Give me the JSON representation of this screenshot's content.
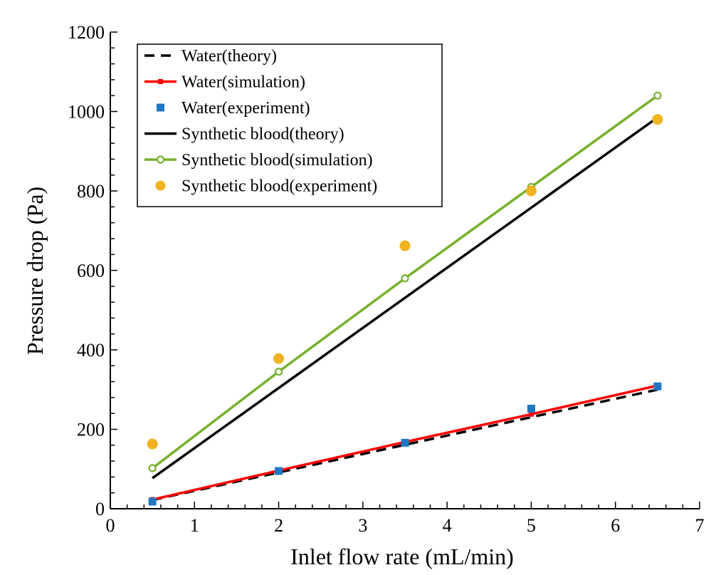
{
  "chart_data": {
    "type": "line",
    "xlabel": "Inlet flow rate (mL/min)",
    "ylabel": "Pressure drop (Pa)",
    "xlim": [
      0,
      7
    ],
    "ylim": [
      0,
      1200
    ],
    "xticks": [
      0,
      1,
      2,
      3,
      4,
      5,
      6,
      7
    ],
    "yticks": [
      0,
      200,
      400,
      600,
      800,
      1000,
      1200
    ],
    "legend_position": "top-left",
    "grid": false,
    "series": [
      {
        "name": "Water(theory)",
        "style": "dashed-line",
        "color": "#000000",
        "x": [
          0.5,
          6.5
        ],
        "y": [
          22,
          300
        ]
      },
      {
        "name": "Water(simulation)",
        "style": "line-square",
        "color": "#ff0000",
        "x": [
          0.5,
          2,
          3.5,
          5,
          6.5
        ],
        "y": [
          23,
          96,
          168,
          238,
          310
        ]
      },
      {
        "name": "Water(experiment)",
        "style": "marker-square",
        "color": "#1f77c4",
        "x": [
          0.5,
          2,
          3.5,
          5,
          6.5
        ],
        "y": [
          18,
          95,
          166,
          252,
          308
        ]
      },
      {
        "name": "Synthetic blood(theory)",
        "style": "solid-line",
        "color": "#000000",
        "x": [
          0.5,
          6.5
        ],
        "y": [
          77,
          985
        ]
      },
      {
        "name": "Synthetic blood(simulation)",
        "style": "line-circle",
        "color": "#77b02d",
        "x": [
          0.5,
          2,
          3.5,
          5,
          6.5
        ],
        "y": [
          102,
          345,
          580,
          810,
          1040
        ]
      },
      {
        "name": "Synthetic blood(experiment)",
        "style": "marker-circle",
        "color": "#f0b323",
        "x": [
          0.5,
          2,
          3.5,
          5,
          6.5
        ],
        "y": [
          163,
          378,
          662,
          800,
          980
        ]
      }
    ]
  }
}
